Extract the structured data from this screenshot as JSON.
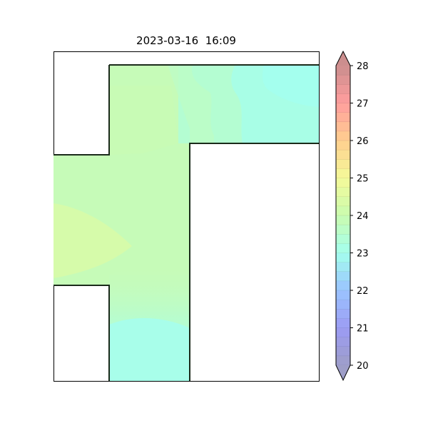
{
  "chart_data": {
    "type": "heatmap",
    "title": "2023-03-16  16:09",
    "xlabel": "",
    "ylabel": "",
    "colorbar": {
      "min": 20,
      "max": 28,
      "step": 0.25,
      "ticks": [
        20,
        21,
        22,
        23,
        24,
        25,
        26,
        27,
        28
      ],
      "extend": "both",
      "colors": {
        "20": "#9e9ec8",
        "21": "#9c9cf4",
        "22": "#9bc4ff",
        "23": "#a4ffee",
        "24": "#cafcb0",
        "25": "#f5fa99",
        "26": "#ffcf8f",
        "27": "#ff9e9e",
        "28": "#cc8e8e"
      }
    },
    "floor_plan_value_bands": [
      {
        "region": "top corridor, right end",
        "value": 23.1
      },
      {
        "region": "top corridor, middle",
        "value": 23.5
      },
      {
        "region": "top corridor, left",
        "value": 23.9
      },
      {
        "region": "central column, upper",
        "value": 24.0
      },
      {
        "region": "left wing",
        "value": 24.2
      },
      {
        "region": "central column, lower",
        "value": 23.7
      },
      {
        "region": "bottom stem",
        "value": 23.2
      }
    ]
  }
}
